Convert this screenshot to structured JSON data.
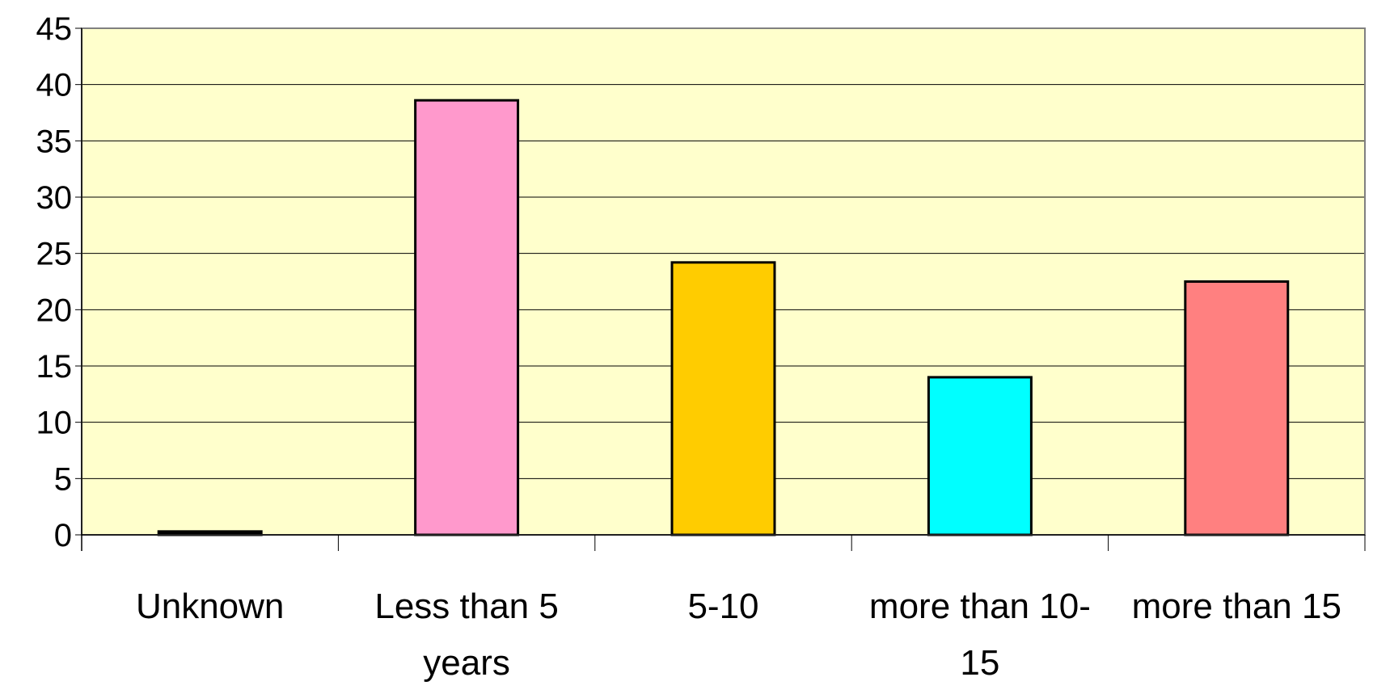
{
  "chart_data": {
    "type": "bar",
    "title": "",
    "xlabel": "",
    "ylabel": "",
    "categories": [
      [
        "Unknown"
      ],
      [
        "Less than 5",
        "years"
      ],
      [
        "5-10"
      ],
      [
        "more than 10-",
        "15"
      ],
      [
        "more than 15"
      ]
    ],
    "values": [
      0.3,
      38.6,
      24.2,
      14.0,
      22.5
    ],
    "colors": [
      "#000000",
      "#FF99CC",
      "#FFCC00",
      "#00FFFF",
      "#FF8080"
    ],
    "ylim": [
      0,
      45
    ],
    "yticks": [
      0,
      5,
      10,
      15,
      20,
      25,
      30,
      35,
      40,
      45
    ],
    "grid": true,
    "plot_background": "#FFFFCC",
    "legend": "none"
  }
}
